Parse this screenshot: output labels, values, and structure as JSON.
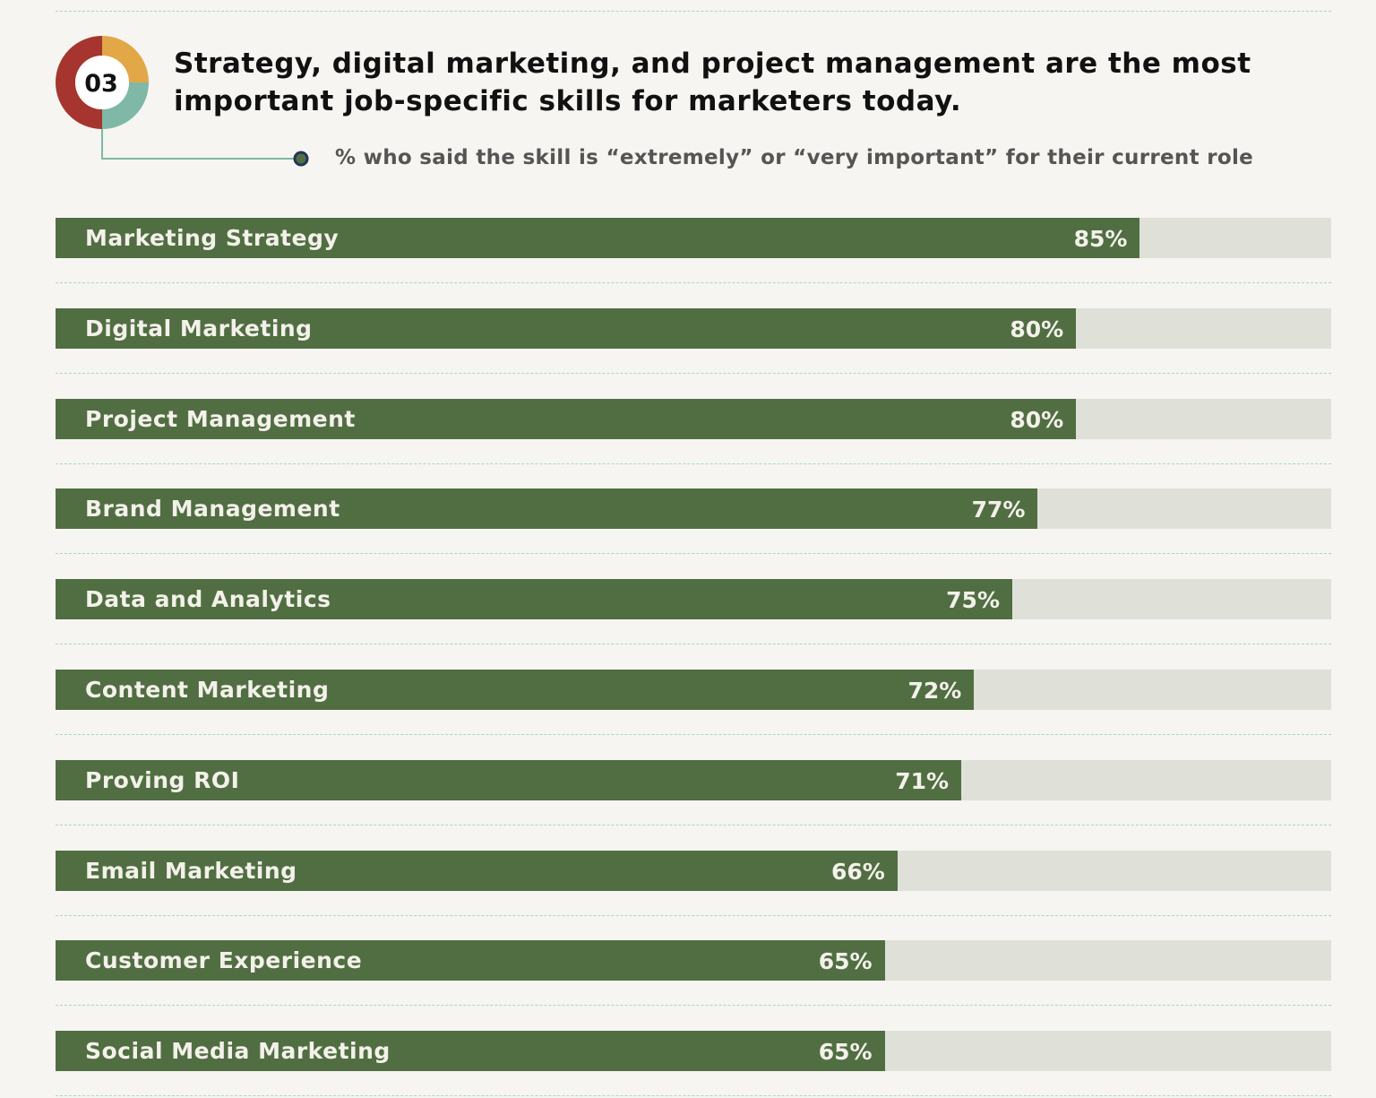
{
  "badge": {
    "number": "03",
    "colors": [
      "#a5352e",
      "#e2a746",
      "#7fb8a6"
    ]
  },
  "colors": {
    "bar": "#516e43",
    "track": "#dfe1d9",
    "background": "#f6f5f1",
    "divider": "#a9d6c6",
    "connector_dot": "#24355a"
  },
  "chart_data": {
    "type": "bar",
    "orientation": "horizontal",
    "title": "Strategy, digital marketing, and project management are the most important job-specific skills for marketers today.",
    "subtitle": "% who said the skill is “extremely” or “very important” for their current role",
    "xlim": [
      0,
      100
    ],
    "categories": [
      "Marketing Strategy",
      "Digital Marketing",
      "Project Management",
      "Brand Management",
      "Data and Analytics",
      "Content Marketing",
      "Proving ROI",
      "Email Marketing",
      "Customer Experience",
      "Social Media Marketing"
    ],
    "values": [
      85,
      80,
      80,
      77,
      75,
      72,
      71,
      66,
      65,
      65
    ],
    "labels": [
      "85%",
      "80%",
      "80%",
      "77%",
      "75%",
      "72%",
      "71%",
      "66%",
      "65%",
      "65%"
    ],
    "grid": false
  }
}
